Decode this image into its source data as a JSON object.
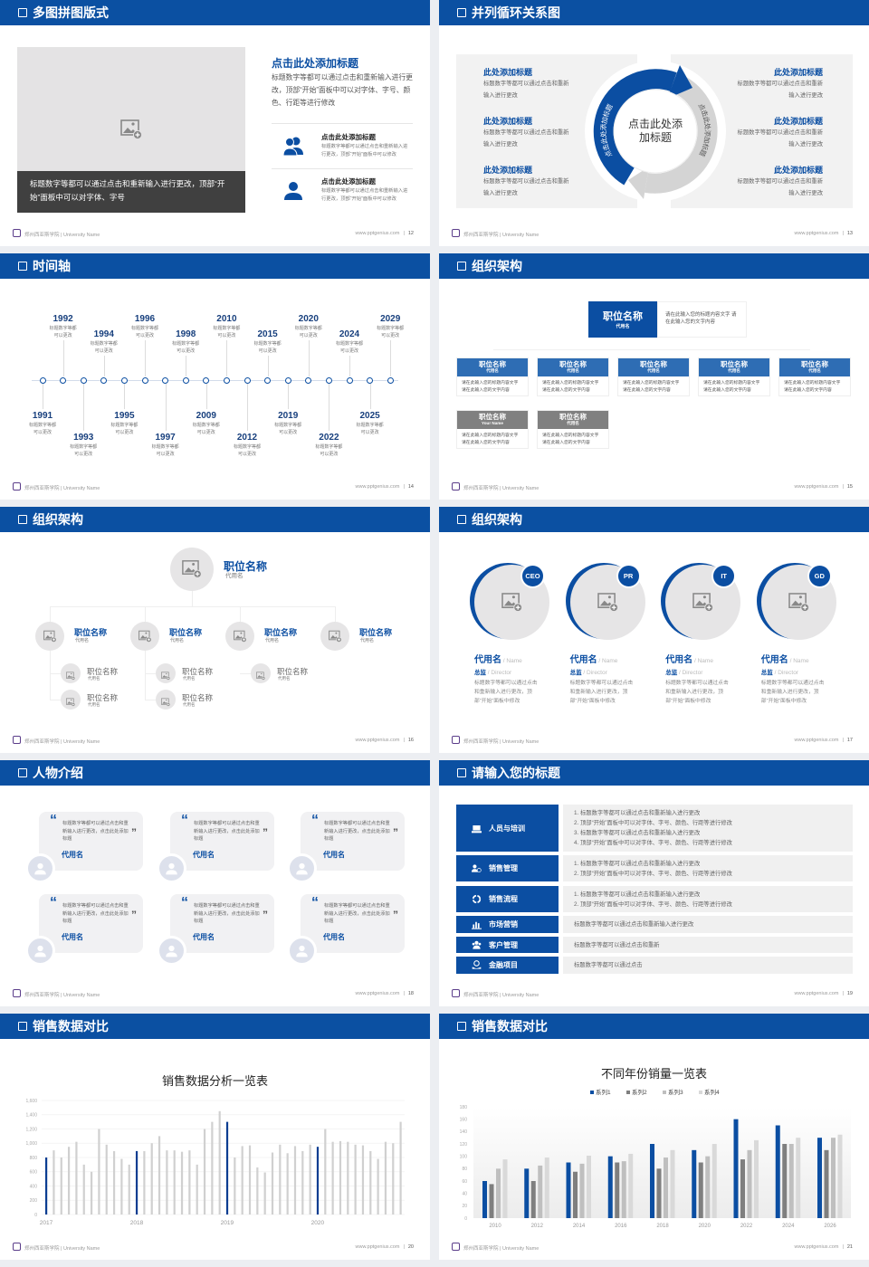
{
  "footer": {
    "school": "郑州西亚斯学院 | University Name",
    "site": "www.pptgenius.com",
    "separator": "|"
  },
  "colors": {
    "primary": "#0b4ea2",
    "header": "#0b50a2",
    "light_blue": "#2e6db4",
    "gray_box": "#808080",
    "panel": "#f2f2f2"
  },
  "slides": [
    {
      "title": "多图拼图版式",
      "page": "12",
      "caption": "标题数字等都可以通过点击和重新输入进行更改，顶部“开始”面板中可以对字体、字号",
      "heading": "点击此处添加标题",
      "paragraph": "标题数字等都可以通过点击和重新输入进行更改，顶部“开始”面板中可以对字体、字号、颜色、行距等进行修改",
      "items": [
        {
          "title": "点击此处添加标题",
          "text": "标题数字等都可以通过点击和重新输入进行更改，顶部“开始”面板中可以修改",
          "icon": "users-icon"
        },
        {
          "title": "点击此处添加标题",
          "text": "标题数字等都可以通过点击和重新输入进行更改，顶部“开始”面板中可以修改",
          "icon": "user-icon"
        }
      ]
    },
    {
      "title": "并列循环关系图",
      "page": "13",
      "center": "点击此处添加标题",
      "arc_left": "点击此处添加标题",
      "arc_right": "点击此处添加标题",
      "items": [
        {
          "title": "此处添加标题",
          "text": "标题数字等都可以通过点击和重新输入进行更改"
        },
        {
          "title": "此处添加标题",
          "text": "标题数字等都可以通过点击和重新输入进行更改"
        },
        {
          "title": "此处添加标题",
          "text": "标题数字等都可以通过点击和重新输入进行更改"
        },
        {
          "title": "此处添加标题",
          "text": "标题数字等都可以通过点击和重新输入进行更改"
        },
        {
          "title": "此处添加标题",
          "text": "标题数字等都可以通过点击和重新输入进行更改"
        },
        {
          "title": "此处添加标题",
          "text": "标题数字等都可以通过点击和重新输入进行更改"
        }
      ]
    },
    {
      "title": "时间轴",
      "page": "14",
      "events": [
        {
          "year": "1991",
          "text": "标题数字等都可以更改"
        },
        {
          "year": "1992",
          "text": "标题数字等都可以更改"
        },
        {
          "year": "1993",
          "text": "标题数字等都可以更改"
        },
        {
          "year": "1994",
          "text": "标题数字等都可以更改"
        },
        {
          "year": "1995",
          "text": "标题数字等都可以更改"
        },
        {
          "year": "1996",
          "text": "标题数字等都可以更改"
        },
        {
          "year": "1997",
          "text": "标题数字等都可以更改"
        },
        {
          "year": "1998",
          "text": "标题数字等都可以更改"
        },
        {
          "year": "2009",
          "text": "标题数字等都可以更改"
        },
        {
          "year": "2010",
          "text": "标题数字等都可以更改"
        },
        {
          "year": "2012",
          "text": "标题数字等都可以更改"
        },
        {
          "year": "2015",
          "text": "标题数字等都可以更改"
        },
        {
          "year": "2019",
          "text": "标题数字等都可以更改"
        },
        {
          "year": "2020",
          "text": "标题数字等都可以更改"
        },
        {
          "year": "2022",
          "text": "标题数字等都可以更改"
        },
        {
          "year": "2024",
          "text": "标题数字等都可以更改"
        },
        {
          "year": "2025",
          "text": "标题数字等都可以更改"
        },
        {
          "year": "2029",
          "text": "标题数字等都可以更改"
        }
      ]
    },
    {
      "title": "组织架构",
      "page": "15",
      "top": {
        "name": "职位名称",
        "sub": "代用名",
        "text": "请在此输入您的标题内容文字 请在此输入您的文字内容"
      },
      "boxes": [
        {
          "name": "职位名称",
          "sub": "代用名",
          "text": "请在此输入您的标题内容文字 请在此输入您的文字内容"
        },
        {
          "name": "职位名称",
          "sub": "代用名",
          "text": "请在此输入您的标题内容文字 请在此输入您的文字内容"
        },
        {
          "name": "职位名称",
          "sub": "代用名",
          "text": "请在此输入您的标题内容文字 请在此输入您的文字内容"
        },
        {
          "name": "职位名称",
          "sub": "代用名",
          "text": "请在此输入您的标题内容文字 请在此输入您的文字内容"
        },
        {
          "name": "职位名称",
          "sub": "代用名",
          "text": "请在此输入您的标题内容文字 请在此输入您的文字内容"
        },
        {
          "name": "职位名称",
          "sub": "Your Name",
          "text": "请在此输入您的标题内容文字 请在此输入您的文字内容"
        },
        {
          "name": "职位名称",
          "sub": "代用名",
          "text": "请在此输入您的标题内容文字 请在此输入您的文字内容"
        }
      ]
    },
    {
      "title": "组织架构",
      "page": "16",
      "top": {
        "name": "职位名称",
        "sub": "代用名"
      },
      "level2": [
        {
          "name": "职位名称",
          "sub": "代用名"
        },
        {
          "name": "职位名称",
          "sub": "代用名"
        },
        {
          "name": "职位名称",
          "sub": "代用名"
        },
        {
          "name": "职位名称",
          "sub": "代用名"
        }
      ],
      "level3": [
        {
          "name": "职位名称",
          "sub": "代用名"
        },
        {
          "name": "职位名称",
          "sub": "代用名"
        },
        {
          "name": "职位名称",
          "sub": "代用名"
        },
        {
          "name": "职位名称",
          "sub": "代用名"
        },
        {
          "name": "职位名称",
          "sub": "代用名"
        }
      ]
    },
    {
      "title": "组织架构",
      "page": "17",
      "members": [
        {
          "badge": "CEO",
          "name": "代用名",
          "name_en": " / Name",
          "role": "总监",
          "role_en": " /  Director",
          "text": "标题数字等都可以通过点击和重新输入进行更改，顶部“开始”面板中修改"
        },
        {
          "badge": "PR",
          "name": "代用名",
          "name_en": " / Name",
          "role": "总监",
          "role_en": " /  Director",
          "text": "标题数字等都可以通过点击和重新输入进行更改，顶部“开始”面板中修改"
        },
        {
          "badge": "IT",
          "name": "代用名",
          "name_en": " / Name",
          "role": "总监",
          "role_en": " /  Director",
          "text": "标题数字等都可以通过点击和重新输入进行更改，顶部“开始”面板中修改"
        },
        {
          "badge": "GD",
          "name": "代用名",
          "name_en": " / Name",
          "role": "总监",
          "role_en": " /  Director",
          "text": "标题数字等都可以通过点击和重新输入进行更改，顶部“开始”面板中修改"
        }
      ]
    },
    {
      "title": "人物介绍",
      "page": "18",
      "cards": [
        {
          "quote": "标题数字等都可以通过点击和重新输入进行更改，点击此处添加标题",
          "name": "代用名"
        },
        {
          "quote": "标题数字等都可以通过点击和重新输入进行更改，点击此处添加标题",
          "name": "代用名"
        },
        {
          "quote": "标题数字等都可以通过点击和重新输入进行更改，点击此处添加标题",
          "name": "代用名"
        },
        {
          "quote": "标题数字等都可以通过点击和重新输入进行更改，点击此处添加标题",
          "name": "代用名"
        },
        {
          "quote": "标题数字等都可以通过点击和重新输入进行更改，点击此处添加标题",
          "name": "代用名"
        },
        {
          "quote": "标题数字等都可以通过点击和重新输入进行更改，点击此处添加标题",
          "name": "代用名"
        }
      ]
    },
    {
      "title": "请输入您的标题",
      "page": "19",
      "rows": [
        {
          "label": "人员与培训",
          "icon": "training-icon",
          "lines": [
            "1.  标题数字等都可以通过点击和重新输入进行更改",
            "2.  顶部“开始”面板中可以对字体、字号、颜色、行距等进行修改",
            "3.  标题数字等都可以通过点击和重新输入进行更改",
            "4.  顶部“开始”面板中可以对字体、字号、颜色、行距等进行修改"
          ]
        },
        {
          "label": "销售管理",
          "icon": "sales-management-icon",
          "lines": [
            "1.  标题数字等都可以通过点击和重新输入进行更改",
            "2.  顶部“开始”面板中可以对字体、字号、颜色、行距等进行修改"
          ]
        },
        {
          "label": "销售流程",
          "icon": "process-cycle-icon",
          "lines": [
            "1.  标题数字等都可以通过点击和重新输入进行更改",
            "2.  顶部“开始”面板中可以对字体、字号、颜色、行距等进行修改"
          ]
        },
        {
          "label": "市场营销",
          "icon": "bar-chart-icon",
          "lines": [
            "标题数字等都可以通过点击和重新输入进行更改"
          ]
        },
        {
          "label": "客户管理",
          "icon": "customers-icon",
          "lines": [
            "标题数字等都可以通过点击和重新"
          ]
        },
        {
          "label": "金融项目",
          "icon": "finance-icon",
          "lines": [
            "标题数字等都可以通过点击"
          ]
        }
      ]
    },
    {
      "title": "销售数据对比",
      "page": "20"
    },
    {
      "title": "销售数据对比",
      "page": "21"
    }
  ],
  "chart_data": [
    {
      "type": "bar",
      "title": "销售数据分析一览表",
      "xticks": [
        "2017",
        "2018",
        "2019",
        "2020"
      ],
      "yticks": [
        "0",
        "200",
        "400",
        "600",
        "800",
        "1,000",
        "1,200",
        "1,400",
        "1,600"
      ],
      "ylim": [
        0,
        1600
      ],
      "grid": true,
      "values": [
        800,
        900,
        800,
        950,
        1020,
        700,
        600,
        1200,
        980,
        890,
        780,
        700,
        890,
        890,
        1000,
        1100,
        900,
        900,
        880,
        900,
        700,
        1200,
        1300,
        1450,
        1300,
        800,
        960,
        970,
        660,
        590,
        870,
        980,
        860,
        960,
        890,
        980,
        950,
        1200,
        1020,
        1030,
        1020,
        980,
        970,
        890,
        780,
        1020,
        1000,
        1300
      ],
      "highlight": [
        0,
        12,
        24,
        36
      ],
      "colors": {
        "highlight": "#0b3d91",
        "default": "#d0d0d0"
      }
    },
    {
      "type": "bar",
      "title": "不同年份销量一览表",
      "categories": [
        "2010",
        "2012",
        "2014",
        "2016",
        "2018",
        "2020",
        "2022",
        "2024",
        "2026"
      ],
      "yticks": [
        "0",
        "20",
        "40",
        "60",
        "80",
        "100",
        "120",
        "140",
        "160",
        "180"
      ],
      "ylim": [
        0,
        180
      ],
      "grid": true,
      "legend": "top",
      "series": [
        {
          "name": "系列1",
          "color": "#0b4ea2",
          "values": [
            60,
            80,
            90,
            100,
            120,
            110,
            160,
            150,
            130
          ]
        },
        {
          "name": "系列2",
          "color": "#7f7f7f",
          "values": [
            55,
            60,
            75,
            90,
            80,
            90,
            95,
            120,
            110
          ]
        },
        {
          "name": "系列3",
          "color": "#bfbfbf",
          "values": [
            80,
            85,
            88,
            92,
            98,
            100,
            110,
            120,
            130
          ]
        },
        {
          "name": "系列4",
          "color": "#d9d9d9",
          "values": [
            95,
            98,
            101,
            104,
            110,
            120,
            126,
            130,
            135
          ]
        }
      ]
    }
  ]
}
